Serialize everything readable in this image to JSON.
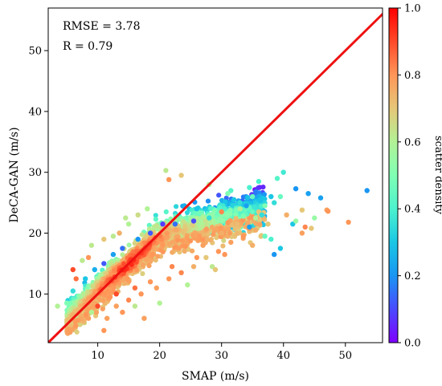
{
  "chart_data": {
    "type": "scatter",
    "xlabel": "SMAP (m/s)",
    "ylabel": "DeCA-GAN (m/s)",
    "xlim": [
      2,
      56
    ],
    "ylim": [
      2,
      57
    ],
    "xticks": [
      10,
      20,
      30,
      40,
      50
    ],
    "yticks": [
      10,
      20,
      30,
      40,
      50
    ],
    "annotations": [
      "RMSE = 3.78",
      "R = 0.79"
    ],
    "reference_line": {
      "from": [
        2,
        2
      ],
      "to": [
        57,
        57
      ],
      "color": "#ee1111"
    },
    "colorbar": {
      "label": "scatter density",
      "range": [
        0,
        1
      ],
      "ticks": [
        "0.0",
        "0.2",
        "0.4",
        "0.6",
        "0.8",
        "1.0"
      ],
      "colormap": "rainbow"
    },
    "points": [
      [
        53.5,
        27.0,
        0.2
      ],
      [
        47.0,
        23.8,
        0.78
      ],
      [
        47.2,
        23.6,
        0.8
      ],
      [
        46.0,
        25.8,
        0.22
      ],
      [
        50.5,
        21.8,
        0.8
      ],
      [
        44.0,
        26.5,
        0.22
      ],
      [
        42.0,
        27.3,
        0.2
      ],
      [
        43.0,
        23.8,
        0.7
      ],
      [
        40.0,
        30.0,
        0.38
      ],
      [
        39.0,
        29.0,
        0.42
      ],
      [
        39.5,
        26.0,
        0.45
      ],
      [
        41.5,
        21.5,
        0.3
      ],
      [
        42.0,
        22.0,
        0.55
      ],
      [
        38.0,
        26.0,
        0.3
      ],
      [
        40.5,
        23.0,
        0.75
      ],
      [
        37.0,
        24.5,
        0.5
      ],
      [
        34.5,
        21.0,
        0.22
      ],
      [
        35.0,
        26.0,
        0.45
      ],
      [
        36.0,
        28.5,
        0.4
      ],
      [
        38.5,
        25.0,
        0.35
      ],
      [
        43.5,
        21.0,
        0.82
      ],
      [
        43.0,
        20.0,
        0.78
      ],
      [
        44.5,
        20.8,
        0.7
      ],
      [
        45.0,
        22.5,
        0.55
      ],
      [
        39.5,
        17.5,
        0.3
      ],
      [
        38.5,
        16.5,
        0.2
      ],
      [
        37.0,
        19.5,
        0.45
      ],
      [
        38.0,
        19.0,
        0.4
      ],
      [
        31.0,
        26.5,
        0.5
      ],
      [
        28.0,
        28.0,
        0.6
      ],
      [
        21.0,
        30.3,
        0.62
      ],
      [
        23.5,
        29.5,
        0.7
      ],
      [
        21.5,
        28.8,
        0.8
      ],
      [
        33.0,
        24.0,
        0.6
      ],
      [
        32.0,
        25.5,
        0.3
      ],
      [
        34.0,
        24.5,
        0.22
      ],
      [
        31.5,
        27.0,
        0.42
      ],
      [
        34.5,
        27.5,
        0.4
      ],
      [
        30.0,
        23.5,
        0.82
      ],
      [
        28.5,
        14.5,
        0.62
      ],
      [
        24.5,
        11.5,
        0.6
      ],
      [
        29.0,
        14.0,
        0.7
      ],
      [
        35.0,
        18.0,
        0.75
      ],
      [
        30.5,
        16.5,
        0.8
      ],
      [
        20.0,
        8.5,
        0.6
      ],
      [
        17.5,
        6.0,
        0.78
      ],
      [
        11.0,
        4.0,
        0.8
      ],
      [
        8.5,
        6.0,
        0.78
      ],
      [
        7.0,
        7.0,
        0.75
      ],
      [
        5.0,
        8.5,
        0.5
      ],
      [
        3.5,
        8.0,
        0.6
      ],
      [
        6.0,
        14.0,
        0.9
      ],
      [
        6.0,
        10.5,
        0.35
      ],
      [
        6.5,
        12.5,
        0.85
      ],
      [
        7.5,
        15.5,
        0.62
      ],
      [
        8.5,
        16.0,
        0.8
      ],
      [
        9.0,
        18.0,
        0.62
      ],
      [
        11.0,
        19.0,
        0.7
      ],
      [
        12.5,
        19.5,
        0.62
      ],
      [
        13.5,
        20.0,
        0.75
      ],
      [
        15.0,
        21.5,
        0.6
      ],
      [
        16.5,
        23.0,
        0.65
      ],
      [
        14.5,
        22.5,
        0.62
      ],
      [
        18.0,
        24.0,
        0.6
      ],
      [
        10.0,
        8.0,
        0.9
      ],
      [
        12.0,
        9.5,
        0.8
      ],
      [
        13.0,
        10.0,
        0.9
      ],
      [
        16.0,
        11.0,
        0.85
      ],
      [
        18.5,
        12.0,
        0.8
      ],
      [
        22.0,
        14.5,
        0.82
      ],
      [
        26.0,
        16.0,
        0.8
      ],
      [
        27.0,
        18.0,
        0.78
      ],
      [
        30.0,
        20.0,
        0.75
      ],
      [
        32.5,
        21.5,
        0.72
      ],
      [
        35.5,
        22.5,
        0.6
      ],
      [
        36.5,
        23.0,
        0.35
      ],
      [
        26.0,
        24.0,
        0.3
      ],
      [
        24.0,
        24.5,
        0.25
      ],
      [
        25.5,
        22.0,
        0.1
      ],
      [
        22.5,
        21.5,
        0.15
      ],
      [
        20.5,
        21.5,
        0.08
      ],
      [
        18.5,
        20.0,
        0.12
      ],
      [
        16.5,
        19.0,
        0.2
      ],
      [
        14.0,
        17.5,
        0.15
      ],
      [
        12.5,
        16.5,
        0.22
      ],
      [
        11.0,
        15.0,
        0.12
      ],
      [
        9.5,
        14.0,
        0.25
      ],
      [
        8.0,
        12.5,
        0.3
      ],
      [
        28.0,
        22.5,
        0.35
      ],
      [
        30.5,
        24.0,
        0.4
      ],
      [
        33.5,
        22.8,
        0.5
      ],
      [
        35.0,
        23.5,
        0.45
      ],
      [
        13.0,
        8.0,
        0.78
      ],
      [
        15.0,
        9.0,
        0.82
      ],
      [
        17.0,
        10.0,
        0.8
      ],
      [
        19.5,
        11.0,
        0.78
      ],
      [
        21.5,
        12.5,
        0.8
      ],
      [
        23.5,
        13.5,
        0.82
      ],
      [
        25.5,
        14.5,
        0.75
      ],
      [
        27.5,
        16.0,
        0.7
      ],
      [
        29.5,
        17.0,
        0.8
      ],
      [
        31.5,
        18.5,
        0.78
      ],
      [
        33.5,
        19.5,
        0.8
      ],
      [
        35.5,
        20.5,
        0.75
      ],
      [
        37.5,
        21.5,
        0.7
      ],
      [
        9.0,
        7.0,
        0.6
      ],
      [
        11.5,
        6.0,
        0.78
      ],
      [
        14.0,
        7.0,
        0.8
      ],
      [
        16.0,
        8.0,
        0.62
      ]
    ]
  }
}
